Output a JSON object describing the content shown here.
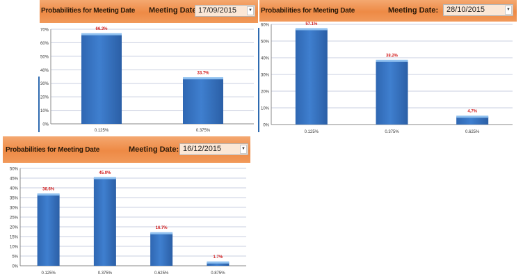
{
  "chart_data": [
    {
      "type": "bar",
      "title": "Probabilities for Meeting Date",
      "meeting_label": "Meeting Date:",
      "meeting_date": "17/09/2015",
      "categories": [
        "0.125%",
        "0.375%"
      ],
      "values": [
        66.3,
        33.7
      ],
      "data_labels": [
        "66.3%",
        "33.7%"
      ],
      "yticks": [
        "0%",
        "10%",
        "20%",
        "30%",
        "40%",
        "50%",
        "60%",
        "70%"
      ],
      "ylim": [
        0,
        70
      ],
      "grid": true,
      "bar_color": "#3f7fcf"
    },
    {
      "type": "bar",
      "title": "Probabilities for Meeting Date",
      "meeting_label": "Meeting Date:",
      "meeting_date": "28/10/2015",
      "categories": [
        "0.125%",
        "0.375%",
        "0.625%"
      ],
      "values": [
        57.1,
        38.2,
        4.7
      ],
      "data_labels": [
        "57.1%",
        "38.2%",
        "4.7%"
      ],
      "yticks": [
        "0%",
        "10%",
        "20%",
        "30%",
        "40%",
        "50%",
        "60%"
      ],
      "ylim": [
        0,
        60
      ],
      "grid": true,
      "bar_color": "#3f7fcf"
    },
    {
      "type": "bar",
      "title": "Probabilities for Meeting Date",
      "meeting_label": "Meeting Date:",
      "meeting_date": "16/12/2015",
      "categories": [
        "0.125%",
        "0.375%",
        "0.625%",
        "0.875%"
      ],
      "values": [
        36.6,
        45.0,
        16.7,
        1.7
      ],
      "data_labels": [
        "36.6%",
        "45.0%",
        "16.7%",
        "1.7%"
      ],
      "yticks": [
        "0%",
        "5%",
        "10%",
        "15%",
        "20%",
        "25%",
        "30%",
        "35%",
        "40%",
        "45%",
        "50%"
      ],
      "ylim": [
        0,
        50
      ],
      "grid": true,
      "bar_color": "#3f7fcf"
    }
  ]
}
